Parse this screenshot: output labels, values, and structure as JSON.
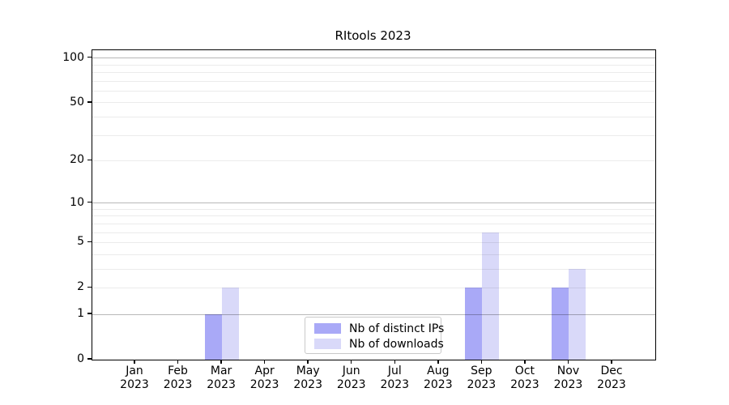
{
  "chart_data": {
    "type": "bar",
    "title": "RItools 2023",
    "categories": [
      "Jan",
      "Feb",
      "Mar",
      "Apr",
      "May",
      "Jun",
      "Jul",
      "Aug",
      "Sep",
      "Oct",
      "Nov",
      "Dec"
    ],
    "category_sublabel": "2023",
    "series": [
      {
        "name": "Nb of distinct IPs",
        "color": "#a9a9f7",
        "values": [
          0,
          0,
          1,
          0,
          0,
          0,
          0,
          0,
          2,
          0,
          2,
          0
        ]
      },
      {
        "name": "Nb of downloads",
        "color": "#d9d9f9",
        "values": [
          0,
          0,
          2,
          0,
          0,
          0,
          0,
          0,
          6,
          0,
          3,
          0
        ]
      }
    ],
    "xlabel": "",
    "ylabel": "",
    "yscale": "log1p",
    "ylim": [
      0,
      113
    ],
    "yticks": [
      0,
      1,
      2,
      5,
      10,
      20,
      50,
      100
    ],
    "grid": "both",
    "grid_major_values": [
      1,
      10,
      100
    ],
    "grid_minor_values": [
      2,
      3,
      4,
      5,
      6,
      7,
      8,
      9,
      20,
      30,
      40,
      50,
      60,
      70,
      80,
      90
    ],
    "legend_position": "lower center",
    "colors": {
      "grid_major": "rgba(0,0,0,0.28)",
      "grid_minor": "rgba(0,0,0,0.08)",
      "axis": "#000000",
      "background": "#ffffff"
    }
  }
}
